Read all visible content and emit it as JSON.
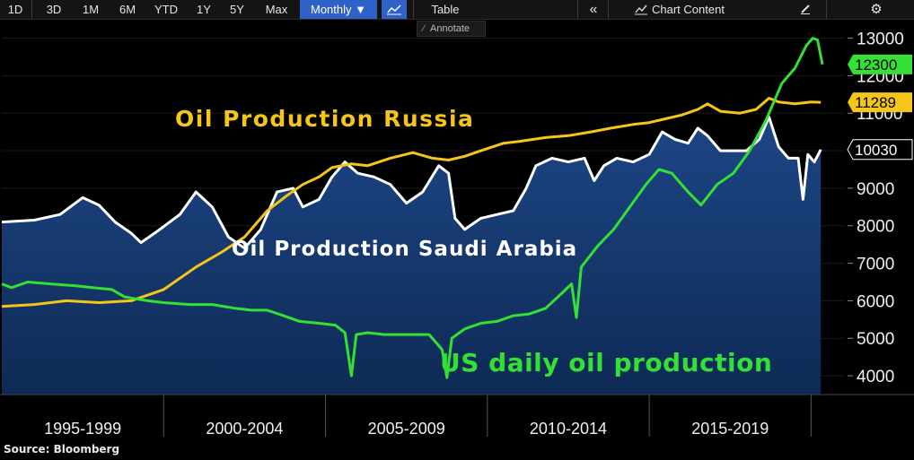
{
  "toolbar": {
    "ranges": [
      "1D",
      "3D",
      "1M",
      "6M",
      "YTD",
      "1Y",
      "5Y",
      "Max"
    ],
    "frequency": "Monthly ▼",
    "table": "Table",
    "collapse": "«",
    "chart_content": "Chart Content",
    "annotate": "Annotate"
  },
  "source": "Source: Bloomberg",
  "colors": {
    "russia": "#f5c518",
    "saudi": "#ffffff",
    "us": "#33e033",
    "area": "#163a70"
  },
  "chart_data": {
    "type": "line",
    "xlabel": "",
    "ylabel": "",
    "x_range": [
      1995.0,
      2020.35
    ],
    "ylim": [
      3500,
      13300
    ],
    "yticks": [
      4000,
      5000,
      6000,
      7000,
      8000,
      9000,
      10000,
      11000,
      12000,
      13000
    ],
    "xtick_labels": [
      "1995-1999",
      "2000-2004",
      "2005-2009",
      "2010-2014",
      "2015-2019"
    ],
    "xtick_bounds": [
      2000,
      2005,
      2010,
      2015,
      2020
    ],
    "annotations": [
      "Oil Production Russia",
      "Oil Production Saudi Arabia",
      "US daily oil production"
    ],
    "series": [
      {
        "name": "Oil Production Saudi Arabia",
        "key": "saudi",
        "last_value": "10030",
        "points": [
          [
            1995.0,
            8100
          ],
          [
            1996.0,
            8150
          ],
          [
            1996.8,
            8300
          ],
          [
            1997.5,
            8750
          ],
          [
            1998.0,
            8550
          ],
          [
            1998.5,
            8100
          ],
          [
            1999.0,
            7800
          ],
          [
            1999.3,
            7550
          ],
          [
            1999.8,
            7850
          ],
          [
            2000.5,
            8300
          ],
          [
            2001.0,
            8900
          ],
          [
            2001.5,
            8500
          ],
          [
            2002.0,
            7700
          ],
          [
            2002.5,
            7400
          ],
          [
            2003.0,
            7900
          ],
          [
            2003.5,
            8900
          ],
          [
            2004.0,
            9000
          ],
          [
            2004.3,
            8500
          ],
          [
            2004.8,
            8700
          ],
          [
            2005.2,
            9300
          ],
          [
            2005.6,
            9700
          ],
          [
            2006.0,
            9400
          ],
          [
            2006.5,
            9300
          ],
          [
            2007.0,
            9100
          ],
          [
            2007.5,
            8600
          ],
          [
            2008.0,
            8900
          ],
          [
            2008.5,
            9600
          ],
          [
            2008.8,
            9400
          ],
          [
            2009.0,
            8200
          ],
          [
            2009.3,
            7900
          ],
          [
            2009.8,
            8200
          ],
          [
            2010.3,
            8300
          ],
          [
            2010.8,
            8400
          ],
          [
            2011.2,
            9000
          ],
          [
            2011.5,
            9600
          ],
          [
            2012.0,
            9800
          ],
          [
            2012.5,
            9700
          ],
          [
            2013.0,
            9800
          ],
          [
            2013.3,
            9200
          ],
          [
            2013.6,
            9600
          ],
          [
            2014.0,
            9800
          ],
          [
            2014.5,
            9700
          ],
          [
            2015.0,
            9900
          ],
          [
            2015.4,
            10500
          ],
          [
            2015.8,
            10300
          ],
          [
            2016.2,
            10200
          ],
          [
            2016.5,
            10600
          ],
          [
            2016.8,
            10400
          ],
          [
            2017.2,
            10000
          ],
          [
            2017.6,
            10000
          ],
          [
            2018.0,
            10000
          ],
          [
            2018.4,
            10300
          ],
          [
            2018.7,
            10900
          ],
          [
            2019.0,
            10100
          ],
          [
            2019.3,
            9800
          ],
          [
            2019.6,
            9800
          ],
          [
            2019.75,
            8700
          ],
          [
            2019.9,
            9900
          ],
          [
            2020.1,
            9700
          ],
          [
            2020.3,
            10030
          ]
        ]
      },
      {
        "name": "Oil Production Russia",
        "key": "russia",
        "last_value": "11289",
        "points": [
          [
            1995.0,
            5850
          ],
          [
            1996.0,
            5900
          ],
          [
            1997.0,
            6000
          ],
          [
            1998.0,
            5950
          ],
          [
            1999.0,
            6000
          ],
          [
            2000.0,
            6300
          ],
          [
            2001.0,
            6900
          ],
          [
            2001.8,
            7300
          ],
          [
            2002.5,
            7700
          ],
          [
            2003.2,
            8400
          ],
          [
            2003.8,
            8800
          ],
          [
            2004.3,
            9100
          ],
          [
            2004.8,
            9300
          ],
          [
            2005.2,
            9550
          ],
          [
            2005.8,
            9650
          ],
          [
            2006.3,
            9600
          ],
          [
            2007.0,
            9800
          ],
          [
            2007.7,
            9950
          ],
          [
            2008.3,
            9800
          ],
          [
            2008.8,
            9750
          ],
          [
            2009.3,
            9850
          ],
          [
            2009.8,
            10000
          ],
          [
            2010.5,
            10200
          ],
          [
            2011.0,
            10250
          ],
          [
            2011.8,
            10350
          ],
          [
            2012.5,
            10400
          ],
          [
            2013.2,
            10500
          ],
          [
            2013.8,
            10600
          ],
          [
            2014.5,
            10700
          ],
          [
            2015.0,
            10750
          ],
          [
            2015.5,
            10850
          ],
          [
            2016.0,
            10950
          ],
          [
            2016.5,
            11100
          ],
          [
            2016.8,
            11250
          ],
          [
            2017.2,
            11050
          ],
          [
            2017.8,
            11000
          ],
          [
            2018.3,
            11100
          ],
          [
            2018.7,
            11400
          ],
          [
            2019.0,
            11300
          ],
          [
            2019.5,
            11250
          ],
          [
            2020.0,
            11300
          ],
          [
            2020.3,
            11289
          ]
        ]
      },
      {
        "name": "US daily oil production",
        "key": "us",
        "last_value": "12300",
        "points": [
          [
            1995.0,
            6450
          ],
          [
            1995.3,
            6350
          ],
          [
            1995.8,
            6500
          ],
          [
            1996.5,
            6450
          ],
          [
            1997.3,
            6400
          ],
          [
            1997.8,
            6350
          ],
          [
            1998.4,
            6300
          ],
          [
            1998.8,
            6100
          ],
          [
            1999.5,
            6000
          ],
          [
            2000.0,
            5950
          ],
          [
            2000.8,
            5900
          ],
          [
            2001.5,
            5900
          ],
          [
            2002.2,
            5800
          ],
          [
            2002.7,
            5750
          ],
          [
            2003.2,
            5750
          ],
          [
            2003.7,
            5600
          ],
          [
            2004.2,
            5450
          ],
          [
            2004.8,
            5400
          ],
          [
            2005.3,
            5350
          ],
          [
            2005.6,
            5150
          ],
          [
            2005.8,
            4000
          ],
          [
            2005.95,
            5100
          ],
          [
            2006.3,
            5150
          ],
          [
            2006.8,
            5100
          ],
          [
            2007.5,
            5100
          ],
          [
            2008.2,
            5100
          ],
          [
            2008.6,
            4700
          ],
          [
            2008.75,
            3950
          ],
          [
            2008.9,
            5000
          ],
          [
            2009.3,
            5250
          ],
          [
            2009.8,
            5400
          ],
          [
            2010.3,
            5450
          ],
          [
            2010.8,
            5600
          ],
          [
            2011.3,
            5650
          ],
          [
            2011.8,
            5800
          ],
          [
            2012.3,
            6200
          ],
          [
            2012.6,
            6450
          ],
          [
            2012.75,
            5550
          ],
          [
            2012.9,
            6900
          ],
          [
            2013.4,
            7450
          ],
          [
            2013.9,
            7900
          ],
          [
            2014.4,
            8500
          ],
          [
            2014.9,
            9100
          ],
          [
            2015.3,
            9500
          ],
          [
            2015.7,
            9400
          ],
          [
            2016.2,
            8900
          ],
          [
            2016.6,
            8550
          ],
          [
            2017.1,
            9100
          ],
          [
            2017.6,
            9400
          ],
          [
            2018.1,
            10000
          ],
          [
            2018.6,
            10800
          ],
          [
            2019.1,
            11800
          ],
          [
            2019.5,
            12200
          ],
          [
            2019.85,
            12800
          ],
          [
            2020.05,
            13000
          ],
          [
            2020.2,
            12950
          ],
          [
            2020.35,
            12300
          ]
        ]
      }
    ]
  }
}
